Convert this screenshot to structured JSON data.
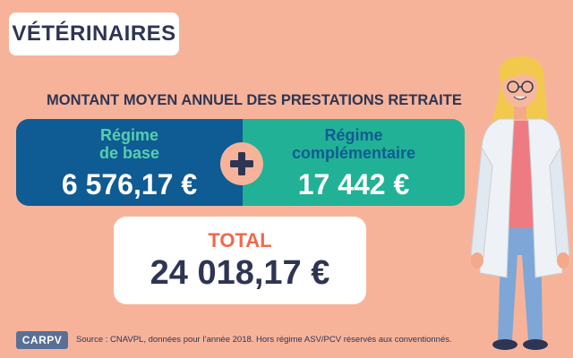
{
  "header": {
    "tag": "VÉTÉRINAIRES"
  },
  "heading": "MONTANT MOYEN ANNUEL DES PRESTATIONS RETRAITE",
  "base": {
    "label_line1": "Régime",
    "label_line2": "de base",
    "value": "6 576,17 €"
  },
  "complementary": {
    "label_line1": "Régime",
    "label_line2": "complémentaire",
    "value": "17 442 €"
  },
  "total": {
    "label": "TOTAL",
    "value": "24 018,17 €"
  },
  "footer": {
    "logo": "CARPV",
    "source": "Source : CNAVPL, données pour l’année 2018. Hors régime ASV/PCV réservés aux conventionnés."
  },
  "icons": {
    "plus": "plus-icon",
    "figure": "veterinarian-illustration"
  },
  "colors": {
    "background": "#f7b39a",
    "navy": "#2e3553",
    "blue_panel": "#0f5b93",
    "teal_panel": "#21b196",
    "total_orange": "#ef6a4b"
  }
}
